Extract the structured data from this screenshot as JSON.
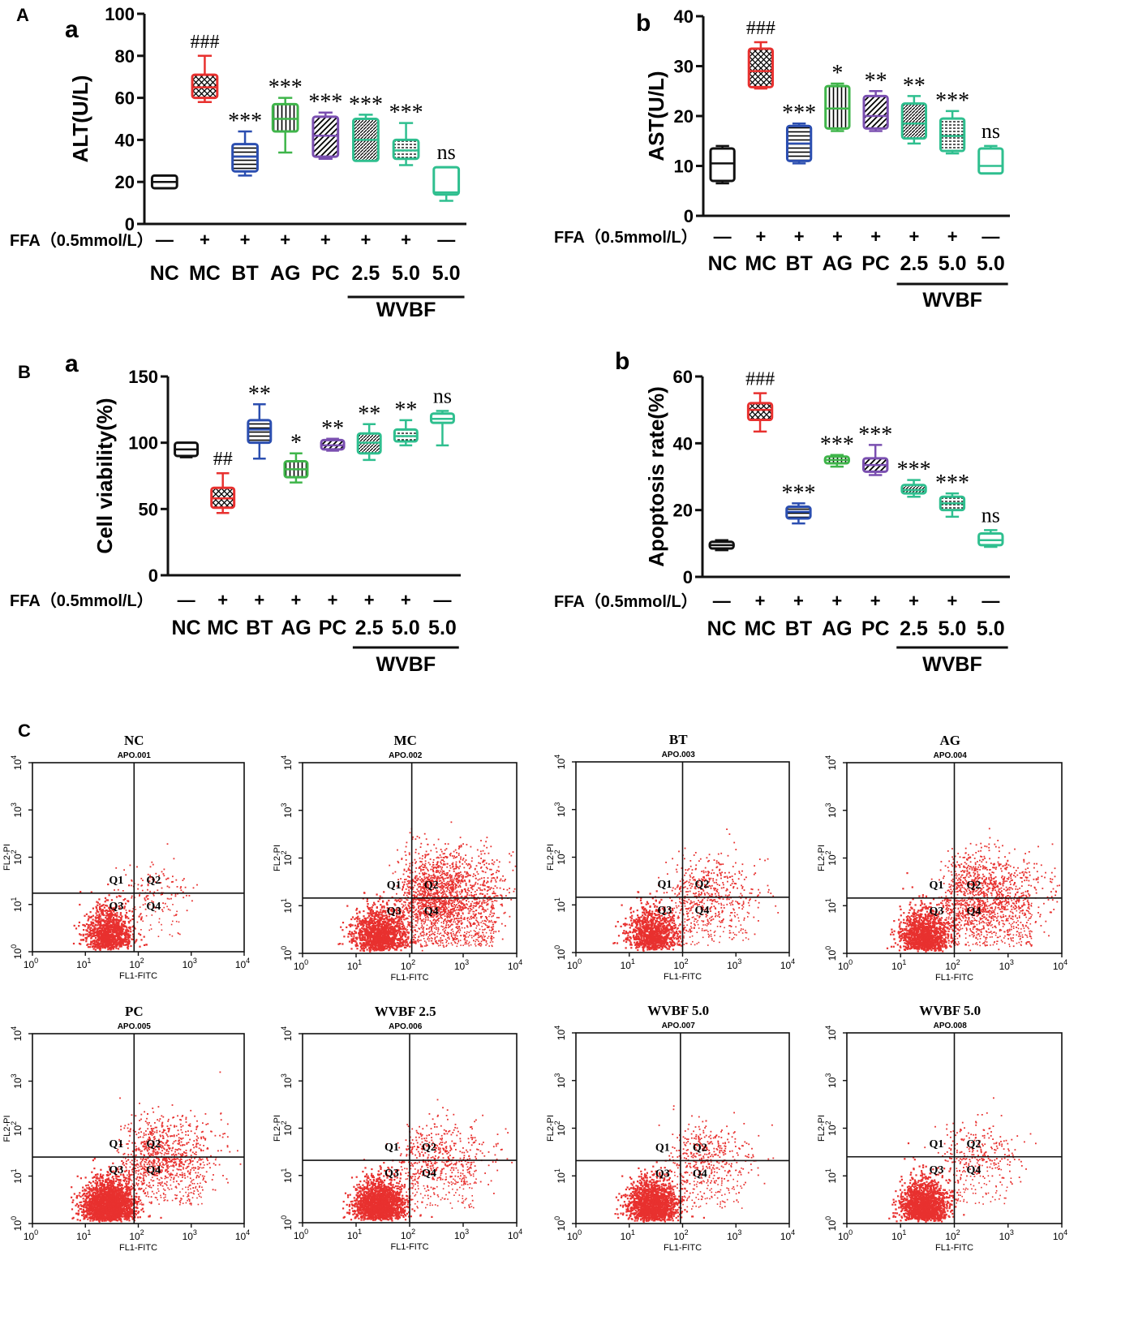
{
  "panel_letters": {
    "A": "A",
    "B": "B",
    "C": "C"
  },
  "colors": {
    "NC": "#111111",
    "MC": "#e8312f",
    "BT": "#2b4eb0",
    "AG": "#3fb54a",
    "PC": "#7a4fb0",
    "WVBF": "#2fbf8f",
    "flow_dot": "#e8312f"
  },
  "group_labels": [
    "NC",
    "MC",
    "BT",
    "AG",
    "PC",
    "2.5",
    "5.0",
    "5.0"
  ],
  "ffa_label": "FFA（0.5mmol/L）",
  "ffa_signs": [
    "—",
    "+",
    "+",
    "+",
    "+",
    "+",
    "+",
    "—"
  ],
  "wvbf_label": "WVBF",
  "chart_data": [
    {
      "type": "box",
      "panel": "a",
      "ylabel": "ALT(U/L)",
      "ylim": [
        0,
        100
      ],
      "yticks": [
        0,
        20,
        40,
        60,
        80,
        100
      ],
      "series": [
        {
          "name": "NC",
          "min": 17,
          "q1": 17,
          "median": 20,
          "q3": 23,
          "max": 23,
          "annotation": ""
        },
        {
          "name": "MC",
          "min": 58,
          "q1": 60,
          "median": 65,
          "q3": 71,
          "max": 80,
          "annotation": "###"
        },
        {
          "name": "BT",
          "min": 23,
          "q1": 25,
          "median": 32,
          "q3": 38,
          "max": 44,
          "annotation": "***"
        },
        {
          "name": "AG",
          "min": 34,
          "q1": 44,
          "median": 50,
          "q3": 57,
          "max": 60,
          "annotation": "***"
        },
        {
          "name": "PC",
          "min": 31,
          "q1": 32,
          "median": 42,
          "q3": 51,
          "max": 53,
          "annotation": "***"
        },
        {
          "name": "WVBF 2.5",
          "min": 30,
          "q1": 30,
          "median": 40,
          "q3": 50,
          "max": 52,
          "annotation": "***"
        },
        {
          "name": "WVBF 5.0",
          "min": 28,
          "q1": 31,
          "median": 35,
          "q3": 40,
          "max": 48,
          "annotation": "***"
        },
        {
          "name": "WVBF 5.0 (no FFA)",
          "min": 11,
          "q1": 14,
          "median": 15,
          "q3": 27,
          "max": 27,
          "annotation": "ns"
        }
      ]
    },
    {
      "type": "box",
      "panel": "b",
      "ylabel": "AST(U/L)",
      "ylim": [
        0,
        40
      ],
      "yticks": [
        0,
        10,
        20,
        30,
        40
      ],
      "series": [
        {
          "name": "NC",
          "min": 6.5,
          "q1": 7,
          "median": 10.5,
          "q3": 13.5,
          "max": 14,
          "annotation": ""
        },
        {
          "name": "MC",
          "min": 25.5,
          "q1": 25.8,
          "median": 29,
          "q3": 33.5,
          "max": 34.8,
          "annotation": "###"
        },
        {
          "name": "BT",
          "min": 10.5,
          "q1": 11,
          "median": 14.5,
          "q3": 18,
          "max": 18.5,
          "annotation": "***"
        },
        {
          "name": "AG",
          "min": 17,
          "q1": 17.5,
          "median": 21.5,
          "q3": 26,
          "max": 26.5,
          "annotation": "*"
        },
        {
          "name": "PC",
          "min": 17,
          "q1": 17.5,
          "median": 20,
          "q3": 24,
          "max": 25,
          "annotation": "**"
        },
        {
          "name": "WVBF 2.5",
          "min": 14.5,
          "q1": 15.5,
          "median": 18.5,
          "q3": 22.5,
          "max": 24,
          "annotation": "**"
        },
        {
          "name": "WVBF 5.0",
          "min": 12.5,
          "q1": 13,
          "median": 16,
          "q3": 19.5,
          "max": 21,
          "annotation": "***"
        },
        {
          "name": "WVBF 5.0 (no FFA)",
          "min": 8.5,
          "q1": 8.5,
          "median": 10,
          "q3": 13.5,
          "max": 14,
          "annotation": "ns"
        }
      ]
    },
    {
      "type": "box",
      "panel": "a",
      "ylabel": "Cell viability(%)",
      "ylim": [
        0,
        150
      ],
      "yticks": [
        0,
        50,
        100,
        150
      ],
      "series": [
        {
          "name": "NC",
          "min": 89,
          "q1": 90,
          "median": 95,
          "q3": 100,
          "max": 100,
          "annotation": ""
        },
        {
          "name": "MC",
          "min": 47,
          "q1": 51,
          "median": 58,
          "q3": 66,
          "max": 77,
          "annotation": "##"
        },
        {
          "name": "BT",
          "min": 88,
          "q1": 100,
          "median": 110,
          "q3": 117,
          "max": 129,
          "annotation": "**"
        },
        {
          "name": "AG",
          "min": 70,
          "q1": 74,
          "median": 80,
          "q3": 86,
          "max": 92,
          "annotation": "*"
        },
        {
          "name": "PC",
          "min": 94,
          "q1": 95,
          "median": 98,
          "q3": 102,
          "max": 103,
          "annotation": "**"
        },
        {
          "name": "WVBF 2.5",
          "min": 87,
          "q1": 92,
          "median": 100,
          "q3": 107,
          "max": 114,
          "annotation": "**"
        },
        {
          "name": "WVBF 5.0",
          "min": 98,
          "q1": 101,
          "median": 105,
          "q3": 110,
          "max": 117,
          "annotation": "**"
        },
        {
          "name": "WVBF 5.0 (no FFA)",
          "min": 98,
          "q1": 115,
          "median": 118,
          "q3": 122,
          "max": 124,
          "annotation": "ns"
        }
      ]
    },
    {
      "type": "box",
      "panel": "b",
      "ylabel": "Apoptosis rate(%)",
      "ylim": [
        0,
        60
      ],
      "yticks": [
        0,
        20,
        40,
        60
      ],
      "series": [
        {
          "name": "NC",
          "min": 8,
          "q1": 8.5,
          "median": 9.5,
          "q3": 10.5,
          "max": 11,
          "annotation": ""
        },
        {
          "name": "MC",
          "min": 43.5,
          "q1": 47,
          "median": 50,
          "q3": 52,
          "max": 55,
          "annotation": "###"
        },
        {
          "name": "BT",
          "min": 16,
          "q1": 17.5,
          "median": 19.5,
          "q3": 21,
          "max": 22,
          "annotation": "***"
        },
        {
          "name": "AG",
          "min": 33,
          "q1": 34,
          "median": 35,
          "q3": 36,
          "max": 36.5,
          "annotation": "***"
        },
        {
          "name": "PC",
          "min": 30.5,
          "q1": 31.5,
          "median": 33.5,
          "q3": 35.5,
          "max": 39.5,
          "annotation": "***"
        },
        {
          "name": "WVBF 2.5",
          "min": 24,
          "q1": 25,
          "median": 26,
          "q3": 27.5,
          "max": 29,
          "annotation": "***"
        },
        {
          "name": "WVBF 5.0",
          "min": 18,
          "q1": 20,
          "median": 22,
          "q3": 24,
          "max": 25,
          "annotation": "***"
        },
        {
          "name": "WVBF 5.0 (no FFA)",
          "min": 9,
          "q1": 9.5,
          "median": 11,
          "q3": 13,
          "max": 14,
          "annotation": "ns"
        }
      ]
    },
    {
      "type": "scatter",
      "subtype": "flow_cytometry",
      "xlabel": "FL1-FITC",
      "ylabel": "FL2-PI",
      "x_scale": "log",
      "y_scale": "log",
      "xlim": [
        1,
        10000
      ],
      "ylim": [
        1,
        10000
      ],
      "tick_exponents": [
        0,
        1,
        2,
        3,
        4
      ],
      "tick_base": "10",
      "quadrant_labels": [
        "Q1",
        "Q2",
        "Q3",
        "Q4"
      ],
      "plots": [
        {
          "title": "NC",
          "sample": "APO.001"
        },
        {
          "title": "MC",
          "sample": "APO.002"
        },
        {
          "title": "BT",
          "sample": "APO.003"
        },
        {
          "title": "AG",
          "sample": "APO.004"
        },
        {
          "title": "PC",
          "sample": "APO.005"
        },
        {
          "title": "WVBF 2.5",
          "sample": "APO.006"
        },
        {
          "title": "WVBF 5.0",
          "sample": "APO.007"
        },
        {
          "title": "WVBF 5.0",
          "sample": "APO.008"
        }
      ]
    }
  ]
}
